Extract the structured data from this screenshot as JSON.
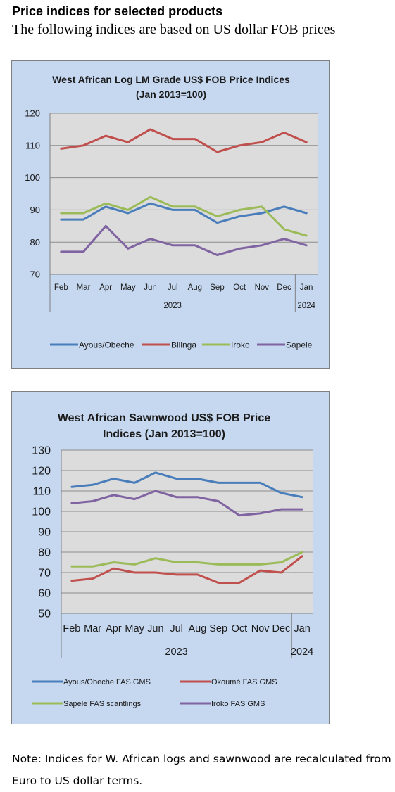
{
  "page": {
    "heading": "Price indices for selected products",
    "subheading": "The following indices are based on US dollar FOB prices",
    "note": "Note: Indices for W. African logs and sawnwood are recalculated from Euro to US dollar terms."
  },
  "chart_data": [
    {
      "type": "line",
      "title": "West African Log LM Grade US$ FOB Price Indices (Jan 2013=100)",
      "title_lines": [
        "West African Log LM Grade US$ FOB Price Indices",
        "(Jan 2013=100)"
      ],
      "categories": [
        "Feb",
        "Mar",
        "Apr",
        "May",
        "Jun",
        "Jul",
        "Aug",
        "Sep",
        "Oct",
        "Nov",
        "Dec",
        "Jan"
      ],
      "year_groups": [
        {
          "label": "2023",
          "span": 11
        },
        {
          "label": "2024",
          "span": 1
        }
      ],
      "ylim": [
        70,
        120
      ],
      "yticks": [
        70,
        80,
        90,
        100,
        110,
        120
      ],
      "grid": true,
      "legend": "bottom",
      "series": [
        {
          "name": "Ayous/Obeche",
          "color": "#4a7ebb",
          "values": [
            87,
            87,
            91,
            89,
            92,
            90,
            90,
            86,
            88,
            89,
            91,
            89
          ]
        },
        {
          "name": "Bilinga",
          "color": "#c0504d",
          "values": [
            109,
            110,
            113,
            111,
            115,
            112,
            112,
            108,
            110,
            111,
            114,
            111
          ]
        },
        {
          "name": "Iroko",
          "color": "#9bbb59",
          "values": [
            89,
            89,
            92,
            90,
            94,
            91,
            91,
            88,
            90,
            91,
            84,
            82
          ]
        },
        {
          "name": "Sapele",
          "color": "#8064a2",
          "values": [
            77,
            77,
            85,
            78,
            81,
            79,
            79,
            76,
            78,
            79,
            81,
            79
          ]
        }
      ]
    },
    {
      "type": "line",
      "title": "West African Sawnwood US$ FOB Price Indices (Jan 2013=100)",
      "title_lines": [
        "West African Sawnwood US$ FOB Price",
        "Indices (Jan 2013=100)"
      ],
      "categories": [
        "Feb",
        "Mar",
        "Apr",
        "May",
        "Jun",
        "Jul",
        "Aug",
        "Sep",
        "Oct",
        "Nov",
        "Dec",
        "Jan"
      ],
      "year_groups": [
        {
          "label": "2023",
          "span": 11
        },
        {
          "label": "2024",
          "span": 1
        }
      ],
      "ylim": [
        50,
        130
      ],
      "yticks": [
        50,
        60,
        70,
        80,
        90,
        100,
        110,
        120,
        130
      ],
      "grid": true,
      "legend": "bottom",
      "series": [
        {
          "name": "Ayous/Obeche  FAS GMS",
          "color": "#4a7ebb",
          "values": [
            112,
            113,
            116,
            114,
            119,
            116,
            116,
            114,
            114,
            114,
            109,
            107
          ]
        },
        {
          "name": "Okoumé  FAS GMS",
          "color": "#c0504d",
          "values": [
            66,
            67,
            72,
            70,
            70,
            69,
            69,
            65,
            65,
            71,
            70,
            78
          ]
        },
        {
          "name": "Sapele FAS scantlings",
          "color": "#9bbb59",
          "values": [
            73,
            73,
            75,
            74,
            77,
            75,
            75,
            74,
            74,
            74,
            75,
            80
          ]
        },
        {
          "name": "Iroko FAS GMS",
          "color": "#8064a2",
          "values": [
            104,
            105,
            108,
            106,
            110,
            107,
            107,
            105,
            98,
            99,
            101,
            101
          ]
        }
      ]
    }
  ]
}
